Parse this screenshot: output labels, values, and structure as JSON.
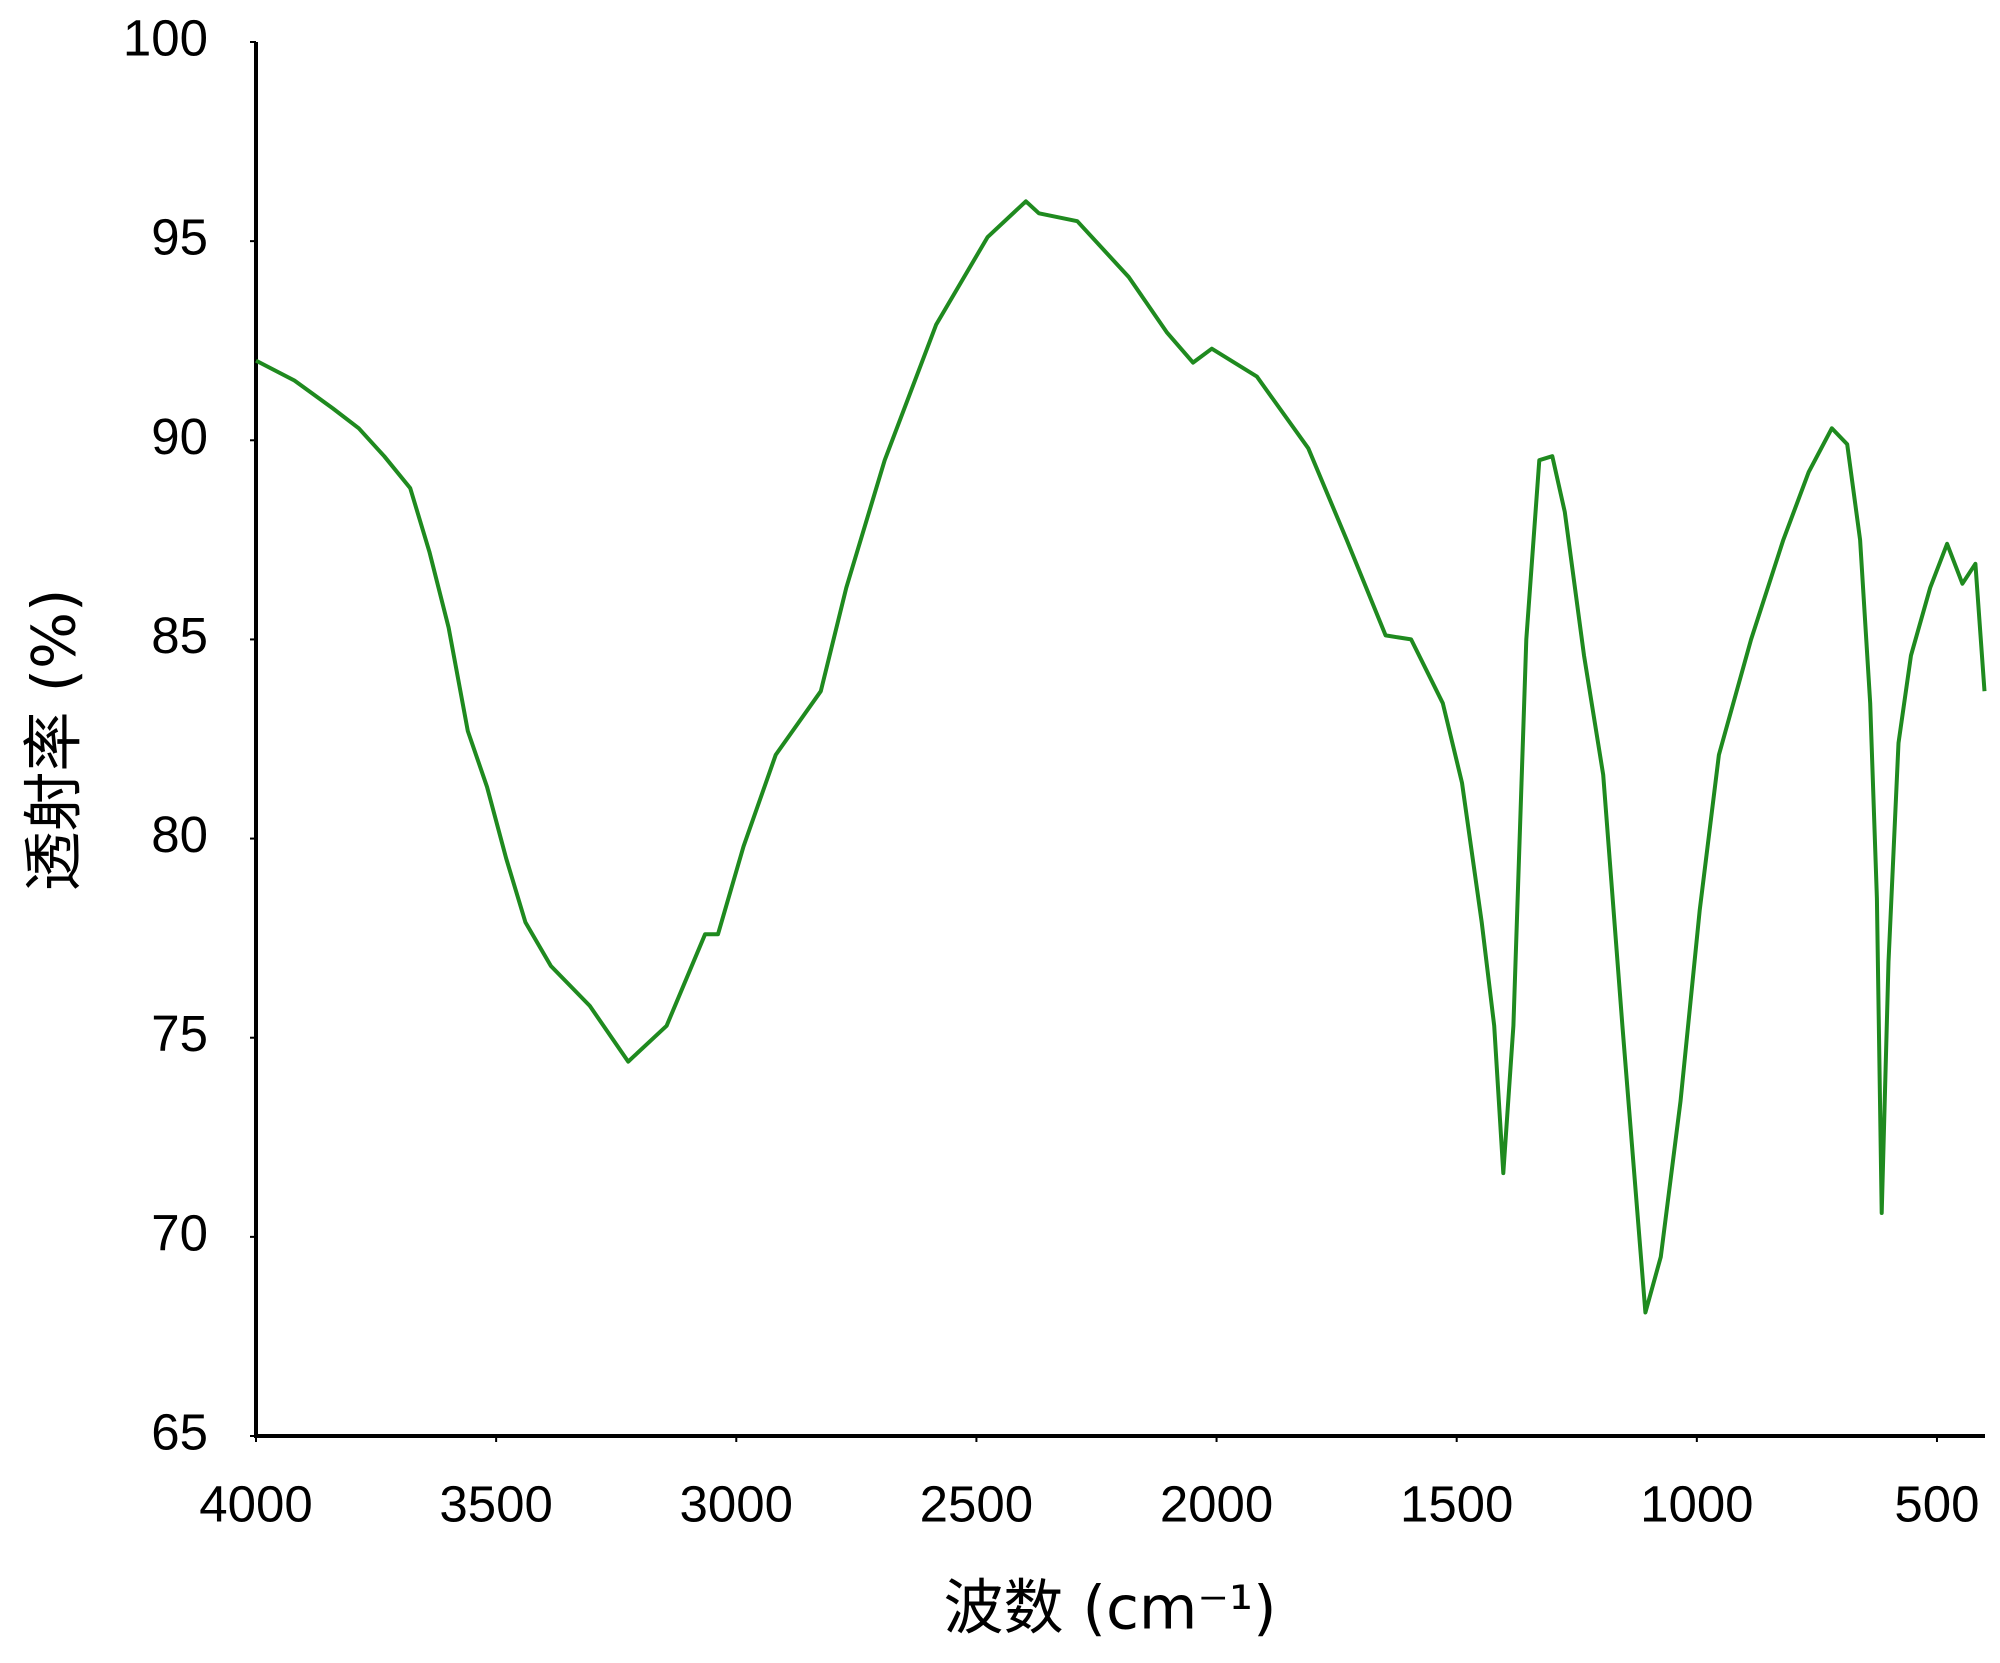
{
  "chart_data": {
    "type": "line",
    "xlabel": "波数 (cm⁻¹)",
    "ylabel": "透射率 (%)",
    "xlim": [
      4000,
      400
    ],
    "ylim": [
      65,
      100
    ],
    "xticks": [
      4000,
      3500,
      3000,
      2500,
      2000,
      1500,
      1000,
      500
    ],
    "yticks": [
      65,
      70,
      75,
      80,
      85,
      90,
      95,
      100
    ],
    "series": [
      {
        "color": "#1f8a1f",
        "x": [
          4000,
          3920,
          3840,
          3786,
          3733,
          3679,
          3639,
          3599,
          3559,
          3519,
          3479,
          3439,
          3386,
          3305,
          3225,
          3145,
          3065,
          3038,
          2985,
          2918,
          2824,
          2771,
          2691,
          2584,
          2477,
          2397,
          2370,
          2290,
          2183,
          2103,
          2049,
          2010,
          1916,
          1809,
          1729,
          1648,
          1595,
          1529,
          1489,
          1448,
          1422,
          1403,
          1382,
          1355,
          1328,
          1301,
          1275,
          1235,
          1195,
          1155,
          1107,
          1075,
          1034,
          994,
          954,
          887,
          820,
          767,
          719,
          687,
          660,
          639,
          625,
          615,
          601,
          580,
          554,
          514,
          479,
          447,
          420,
          401
        ],
        "values": [
          92.0,
          91.5,
          90.8,
          90.3,
          89.6,
          88.8,
          87.2,
          85.3,
          82.7,
          81.3,
          79.5,
          77.9,
          76.8,
          75.8,
          74.4,
          75.3,
          77.6,
          77.6,
          79.8,
          82.1,
          83.7,
          86.3,
          89.5,
          92.9,
          95.1,
          96.0,
          95.7,
          95.5,
          94.1,
          92.7,
          91.95,
          92.3,
          91.6,
          89.8,
          87.5,
          85.1,
          85.0,
          83.4,
          81.4,
          77.9,
          75.3,
          71.6,
          75.3,
          85.0,
          89.5,
          89.6,
          88.2,
          84.6,
          81.6,
          75.3,
          68.1,
          69.5,
          73.4,
          78.2,
          82.1,
          85.0,
          87.5,
          89.2,
          90.3,
          89.9,
          87.5,
          83.4,
          78.5,
          70.6,
          76.9,
          82.4,
          84.6,
          86.3,
          87.4,
          86.4,
          86.9,
          83.7
        ]
      }
    ]
  }
}
